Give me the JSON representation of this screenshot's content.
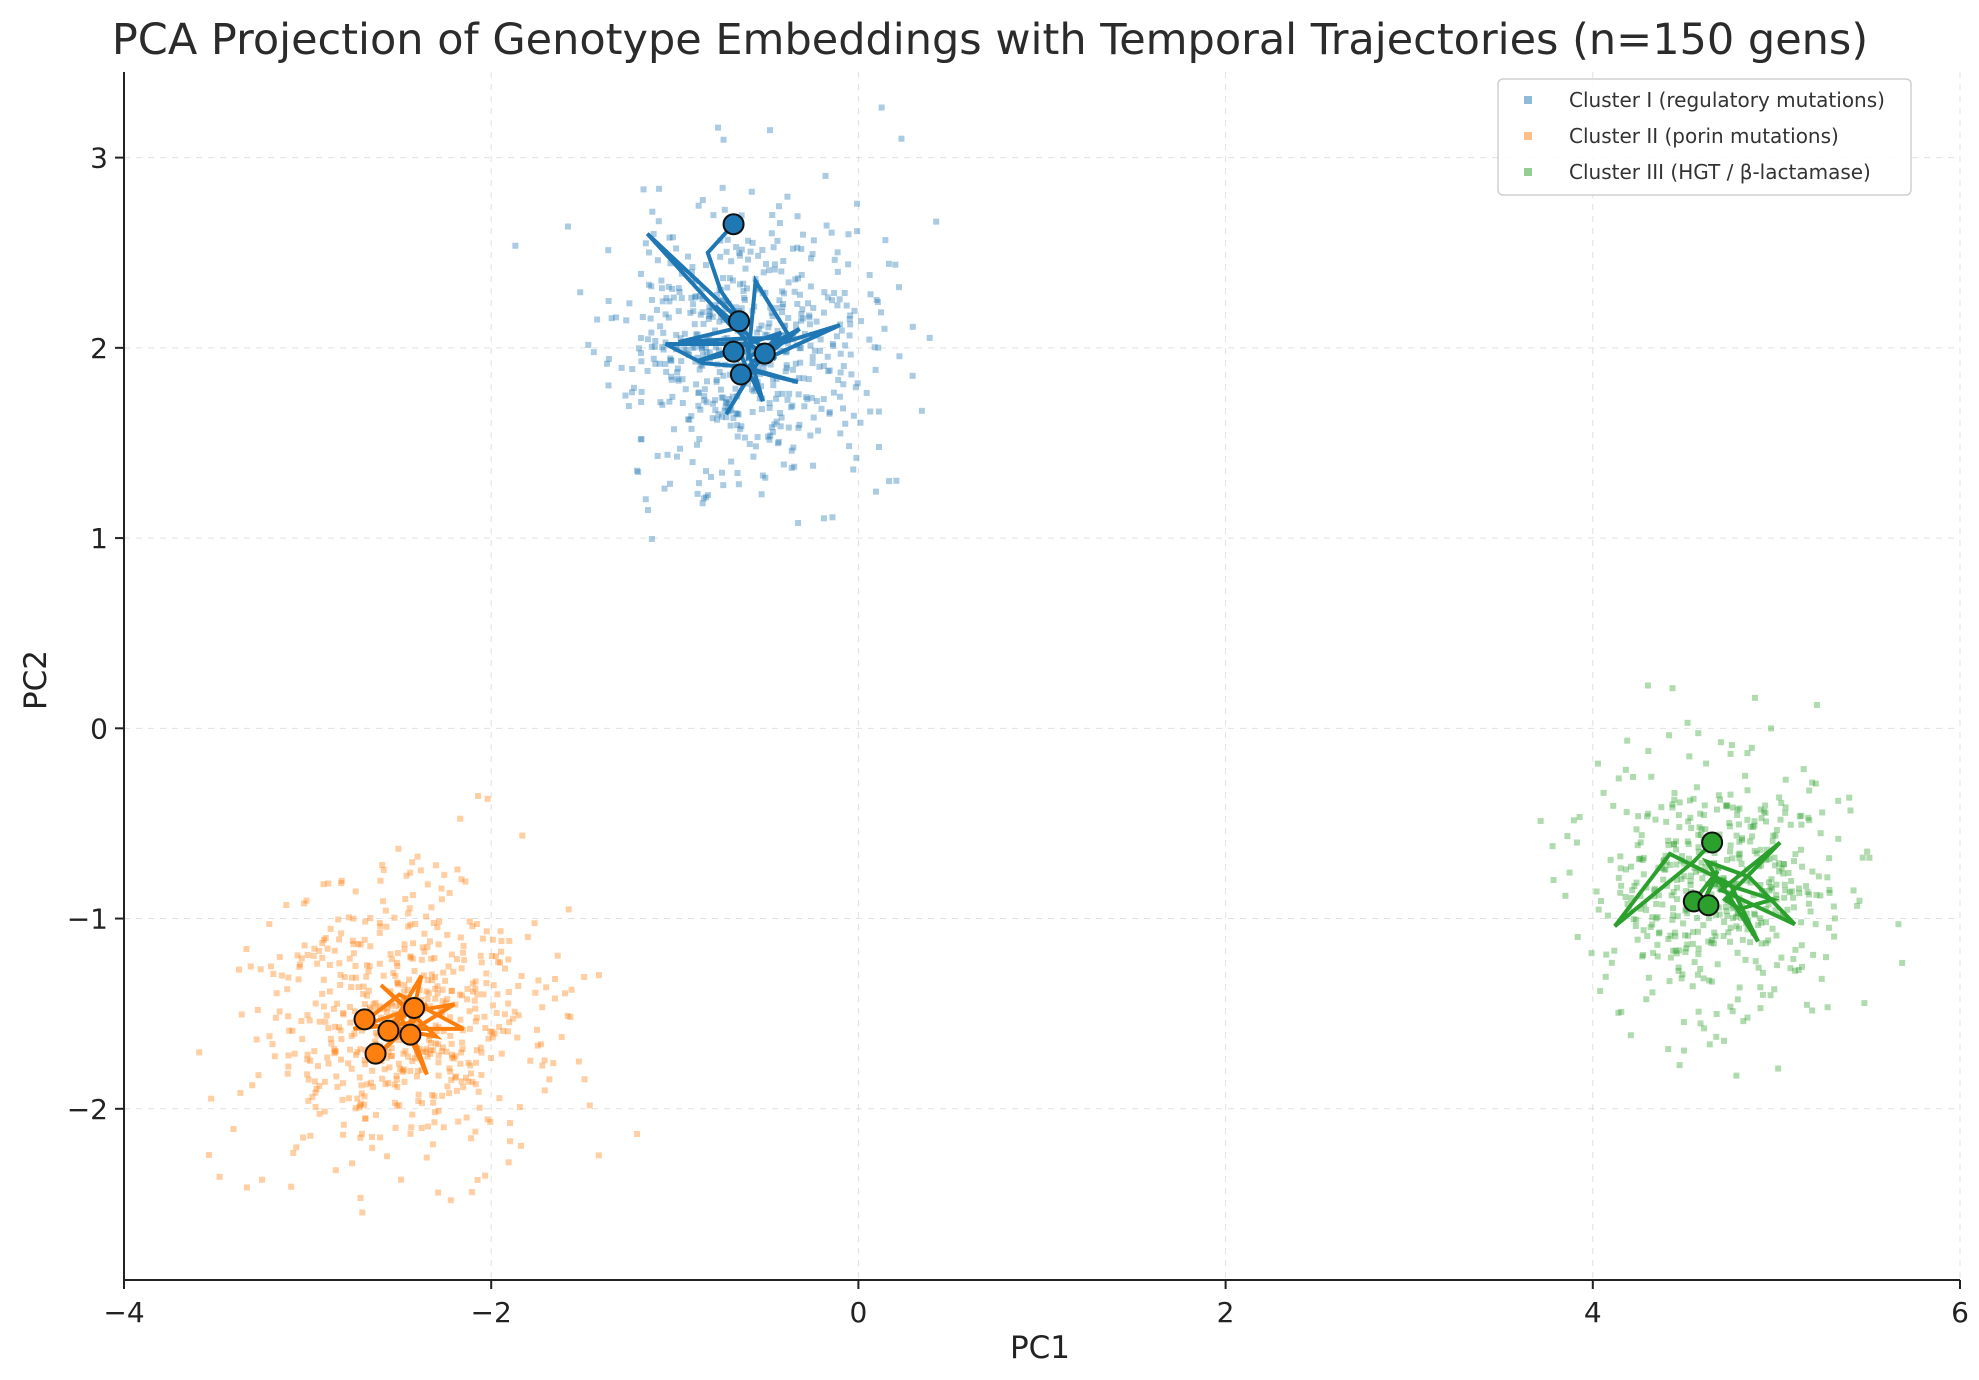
{
  "chart_data": {
    "type": "scatter",
    "title": "PCA Projection of Genotype Embeddings with Temporal Trajectories (n=150 gens)",
    "xlabel": "PC1",
    "ylabel": "PC2",
    "xlim": [
      -4,
      6
    ],
    "ylim": [
      -2.9,
      3.45
    ],
    "xticks": [
      -4,
      -2,
      0,
      2,
      4,
      6
    ],
    "xtick_labels": [
      "−4",
      "−2",
      "0",
      "2",
      "4",
      "6"
    ],
    "yticks": [
      -2,
      -1,
      0,
      1,
      2,
      3
    ],
    "ytick_labels": [
      "−2",
      "−1",
      "0",
      "1",
      "2",
      "3"
    ],
    "grid": true,
    "legend_position": "top-right",
    "series": [
      {
        "name": "Cluster I (regulatory mutations)",
        "color": "#1f77b4",
        "center": [
          -0.62,
          2.02
        ],
        "spread": [
          0.36,
          0.36
        ],
        "n_points": 600,
        "seed": 11,
        "trajectory": [
          [
            -0.68,
            2.65
          ],
          [
            -0.82,
            2.5
          ],
          [
            -0.75,
            2.3
          ],
          [
            -0.62,
            2.12
          ],
          [
            -1.15,
            2.6
          ],
          [
            -0.68,
            2.1
          ],
          [
            -0.98,
            2.03
          ],
          [
            -0.6,
            2.05
          ],
          [
            -0.37,
            2.05
          ],
          [
            -0.56,
            2.35
          ],
          [
            -0.6,
            1.95
          ],
          [
            -0.32,
            2.1
          ],
          [
            -0.55,
            1.92
          ],
          [
            -0.1,
            2.12
          ],
          [
            -0.5,
            2.0
          ],
          [
            -0.72,
            1.65
          ],
          [
            -0.58,
            1.88
          ],
          [
            -0.33,
            1.82
          ],
          [
            -0.62,
            1.9
          ],
          [
            -0.85,
            1.92
          ],
          [
            -1.05,
            2.02
          ],
          [
            -0.6,
            2.02
          ],
          [
            -0.45,
            1.94
          ],
          [
            -0.78,
            2.22
          ],
          [
            -0.62,
            2.05
          ],
          [
            -0.52,
            1.72
          ],
          [
            -0.65,
            1.98
          ],
          [
            -0.88,
            1.93
          ],
          [
            -0.42,
            2.08
          ],
          [
            -0.64,
            1.86
          ]
        ],
        "markers": [
          [
            -0.68,
            2.65
          ],
          [
            -0.65,
            2.14
          ],
          [
            -0.68,
            1.98
          ],
          [
            -0.51,
            1.97
          ],
          [
            -0.64,
            1.86
          ]
        ]
      },
      {
        "name": "Cluster II (porin mutations)",
        "color": "#ff7f0e",
        "center": [
          -2.5,
          -1.55
        ],
        "spread": [
          0.38,
          0.36
        ],
        "n_points": 600,
        "seed": 23,
        "trajectory": [
          [
            -2.42,
            -1.47
          ],
          [
            -2.75,
            -1.58
          ],
          [
            -2.45,
            -1.55
          ],
          [
            -2.35,
            -1.82
          ],
          [
            -2.5,
            -1.5
          ],
          [
            -2.2,
            -1.45
          ],
          [
            -2.45,
            -1.6
          ],
          [
            -2.38,
            -1.3
          ],
          [
            -2.55,
            -1.58
          ],
          [
            -2.15,
            -1.58
          ],
          [
            -2.5,
            -1.4
          ],
          [
            -2.7,
            -1.55
          ],
          [
            -2.3,
            -1.62
          ],
          [
            -2.6,
            -1.35
          ],
          [
            -2.4,
            -1.52
          ],
          [
            -2.62,
            -1.72
          ],
          [
            -2.35,
            -1.45
          ],
          [
            -2.55,
            -1.55
          ],
          [
            -2.44,
            -1.61
          ],
          [
            -2.58,
            -1.59
          ],
          [
            -2.42,
            -1.47
          ]
        ],
        "markers": [
          [
            -2.42,
            -1.47
          ],
          [
            -2.69,
            -1.53
          ],
          [
            -2.56,
            -1.59
          ],
          [
            -2.44,
            -1.61
          ],
          [
            -2.63,
            -1.71
          ]
        ]
      },
      {
        "name": "Cluster III (HGT / β-lactamase)",
        "color": "#2ca02c",
        "center": [
          4.7,
          -0.83
        ],
        "spread": [
          0.34,
          0.34
        ],
        "n_points": 500,
        "seed": 37,
        "trajectory": [
          [
            4.65,
            -0.6
          ],
          [
            4.55,
            -0.7
          ],
          [
            4.12,
            -1.04
          ],
          [
            4.42,
            -0.66
          ],
          [
            4.75,
            -0.82
          ],
          [
            4.9,
            -1.12
          ],
          [
            4.62,
            -0.7
          ],
          [
            4.85,
            -0.78
          ],
          [
            5.1,
            -1.03
          ],
          [
            4.7,
            -0.85
          ],
          [
            5.02,
            -0.6
          ],
          [
            4.72,
            -0.9
          ],
          [
            4.8,
            -0.95
          ],
          [
            4.98,
            -0.9
          ],
          [
            4.66,
            -0.8
          ],
          [
            4.6,
            -0.92
          ],
          [
            4.68,
            -0.75
          ],
          [
            4.55,
            -0.91
          ],
          [
            4.63,
            -0.93
          ]
        ],
        "markers": [
          [
            4.65,
            -0.6
          ],
          [
            4.55,
            -0.91
          ],
          [
            4.63,
            -0.93
          ]
        ]
      }
    ]
  }
}
